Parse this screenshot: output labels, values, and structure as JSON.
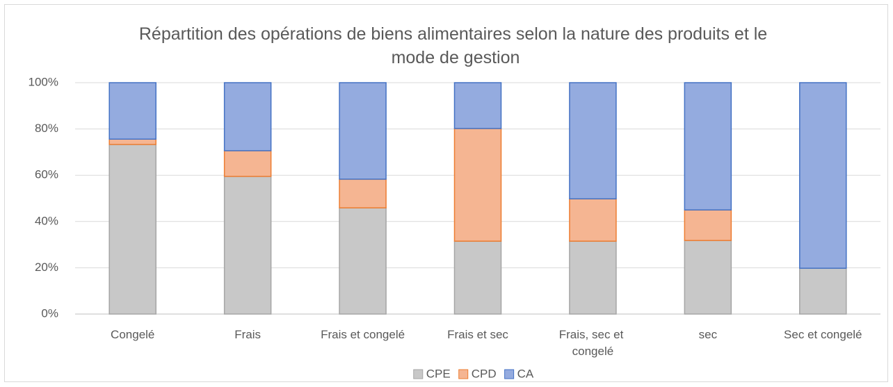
{
  "chart_data": {
    "type": "stacked_bar",
    "title": "Répartition des opérations de biens alimentaires selon la nature des produits et le mode de gestion",
    "categories": [
      "Congelé",
      "Frais",
      "Frais et congelé",
      "Frais et sec",
      "Frais, sec et congelé",
      "sec",
      "Sec et congelé"
    ],
    "series": [
      {
        "name": "CPE",
        "color": "#c8c8c8",
        "edge": "#a5a5a5",
        "values": [
          73.3,
          59.5,
          45.9,
          31.5,
          31.5,
          31.8,
          19.8
        ]
      },
      {
        "name": "CPD",
        "color": "#f5b592",
        "edge": "#ed7d31",
        "values": [
          2.3,
          11.1,
          12.4,
          48.7,
          18.3,
          13.2,
          0
        ]
      },
      {
        "name": "CA",
        "color": "#94abdf",
        "edge": "#4472c4",
        "values": [
          24.4,
          29.4,
          41.7,
          19.8,
          50.2,
          55.0,
          80.2
        ]
      }
    ],
    "ylim": [
      0,
      100
    ],
    "yticks": [
      {
        "value": 0,
        "label": "0%"
      },
      {
        "value": 20,
        "label": "20%"
      },
      {
        "value": 40,
        "label": "40%"
      },
      {
        "value": 60,
        "label": "60%"
      },
      {
        "value": 80,
        "label": "80%"
      },
      {
        "value": 100,
        "label": "100%"
      }
    ],
    "grid": true,
    "legend": "bottom"
  }
}
